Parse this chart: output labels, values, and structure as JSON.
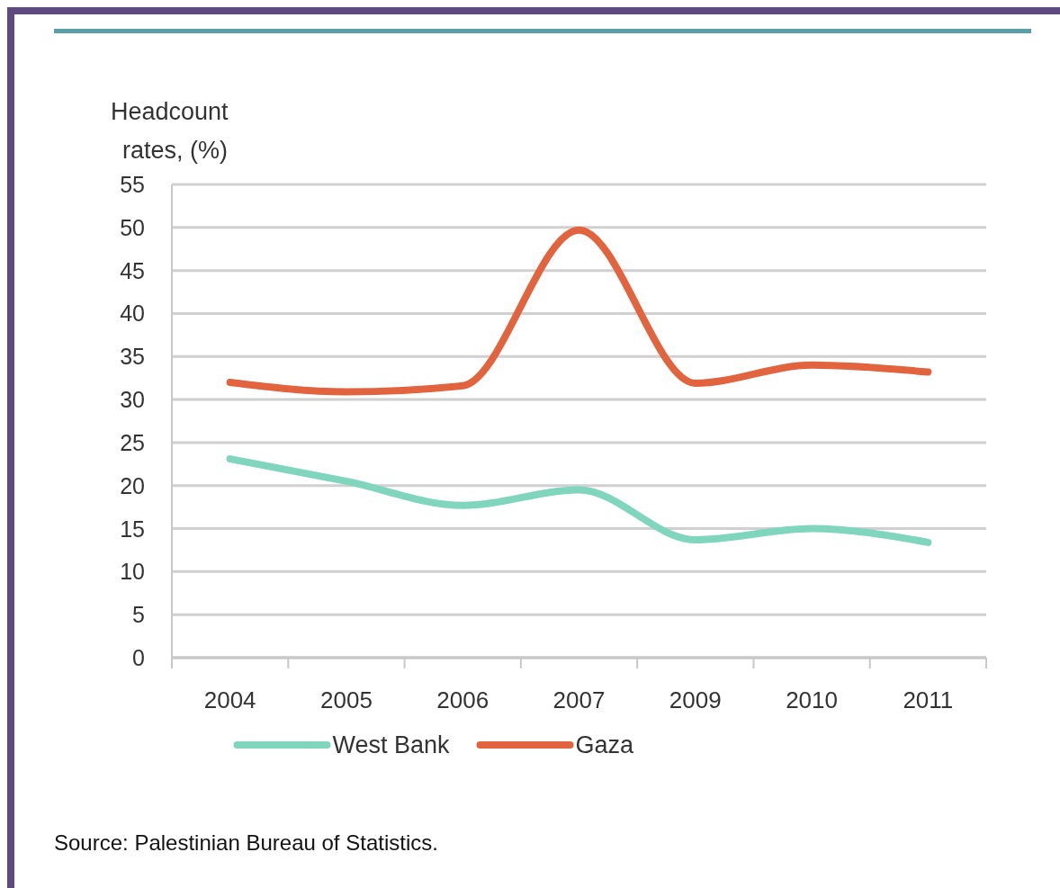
{
  "chart_data": {
    "type": "line",
    "ylabel": "Headcount rates, (%)",
    "categories": [
      "2004",
      "2005",
      "2006",
      "2007",
      "2009",
      "2010",
      "2011"
    ],
    "series": [
      {
        "name": "West Bank",
        "color": "#7fd6bd",
        "values": [
          23.1,
          20.5,
          17.7,
          19.5,
          13.7,
          15,
          13.4
        ]
      },
      {
        "name": "Gaza",
        "color": "#e2643f",
        "values": [
          32,
          30.9,
          31.6,
          49.7,
          31.9,
          34,
          33.2
        ]
      }
    ],
    "ylim": [
      0,
      55
    ],
    "yticks": [
      0,
      5,
      10,
      15,
      20,
      25,
      30,
      35,
      40,
      45,
      50,
      55
    ],
    "grid": "y",
    "legend": "bottom",
    "marker": "none",
    "line_style": "solid",
    "annotations": [
      "Source: Palestinian Bureau of Statistics."
    ]
  }
}
